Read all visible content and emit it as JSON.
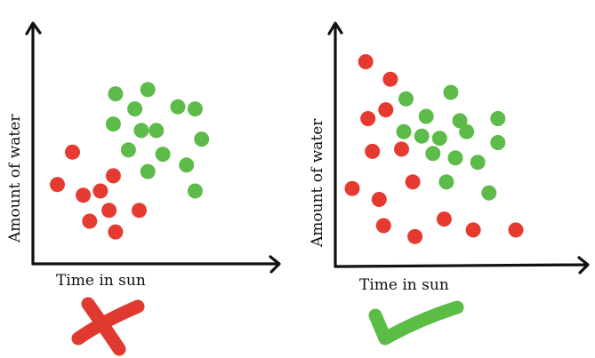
{
  "colors": {
    "red": "#e53a30",
    "green": "#5cbb49",
    "cross": "#e0392f",
    "check": "#5cbd46",
    "axis": "#111111"
  },
  "chart_data": [
    {
      "type": "scatter",
      "title": "",
      "xlabel": "Time in sun",
      "ylabel": "Amount of water",
      "xlim": [
        0,
        10
      ],
      "ylim": [
        0,
        10
      ],
      "grid": false,
      "verdict": "wrong",
      "verdict_icon": "cross-icon",
      "series": [
        {
          "color": "red",
          "points": [
            [
              0.6,
              3.1
            ],
            [
              1.3,
              4.6
            ],
            [
              1.8,
              2.6
            ],
            [
              2.1,
              1.4
            ],
            [
              2.6,
              2.8
            ],
            [
              3.0,
              1.9
            ],
            [
              3.2,
              3.5
            ],
            [
              3.3,
              0.9
            ],
            [
              4.4,
              1.9
            ]
          ]
        },
        {
          "color": "green",
          "points": [
            [
              3.3,
              7.3
            ],
            [
              4.8,
              7.5
            ],
            [
              3.2,
              5.9
            ],
            [
              4.2,
              6.6
            ],
            [
              5.2,
              5.6
            ],
            [
              6.2,
              6.7
            ],
            [
              7.0,
              6.6
            ],
            [
              3.9,
              4.7
            ],
            [
              4.5,
              5.6
            ],
            [
              5.5,
              4.5
            ],
            [
              6.6,
              4.0
            ],
            [
              7.3,
              5.2
            ],
            [
              4.8,
              3.7
            ],
            [
              7.0,
              2.8
            ]
          ]
        }
      ]
    },
    {
      "type": "scatter",
      "title": "",
      "xlabel": "Time in sun",
      "ylabel": "Amount of water",
      "xlim": [
        0,
        10
      ],
      "ylim": [
        0,
        10
      ],
      "grid": false,
      "verdict": "correct",
      "verdict_icon": "check-icon",
      "series": [
        {
          "color": "red",
          "points": [
            [
              0.8,
              8.8
            ],
            [
              1.9,
              8.0
            ],
            [
              0.9,
              6.2
            ],
            [
              1.7,
              6.6
            ],
            [
              1.1,
              4.7
            ],
            [
              2.4,
              4.8
            ],
            [
              0.2,
              3.0
            ],
            [
              1.4,
              2.5
            ],
            [
              2.9,
              3.3
            ],
            [
              1.6,
              1.3
            ],
            [
              3.0,
              0.8
            ],
            [
              4.3,
              1.6
            ],
            [
              5.6,
              1.1
            ],
            [
              7.5,
              1.1
            ]
          ]
        },
        {
          "color": "green",
          "points": [
            [
              2.6,
              7.1
            ],
            [
              4.6,
              7.4
            ],
            [
              3.5,
              6.3
            ],
            [
              5.0,
              6.1
            ],
            [
              6.7,
              6.2
            ],
            [
              2.5,
              5.6
            ],
            [
              3.3,
              5.4
            ],
            [
              4.1,
              5.3
            ],
            [
              5.3,
              5.6
            ],
            [
              6.7,
              5.1
            ],
            [
              3.8,
              4.6
            ],
            [
              4.8,
              4.4
            ],
            [
              5.8,
              4.2
            ],
            [
              4.4,
              3.3
            ],
            [
              6.3,
              2.8
            ]
          ]
        }
      ]
    }
  ]
}
